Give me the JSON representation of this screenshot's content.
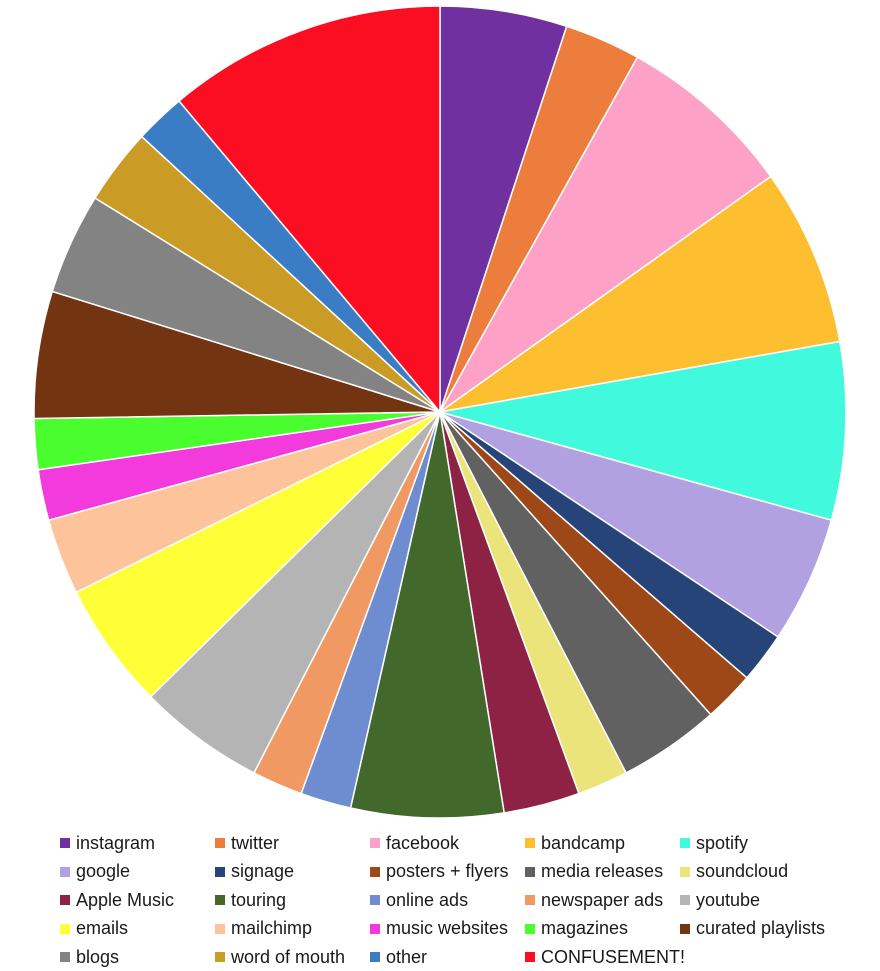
{
  "chart_data": {
    "type": "pie",
    "start": "12 o'clock, clockwise",
    "slices": [
      {
        "label": "instagram",
        "value": 5,
        "color": "#7030A0"
      },
      {
        "label": "twitter",
        "value": 3,
        "color": "#ED7D3C"
      },
      {
        "label": "facebook",
        "value": 7,
        "color": "#FDA2C6"
      },
      {
        "label": "bandcamp",
        "value": 7,
        "color": "#FDBE2F"
      },
      {
        "label": "spotify",
        "value": 7,
        "color": "#41F9DD"
      },
      {
        "label": "google",
        "value": 5,
        "color": "#B2A1E0"
      },
      {
        "label": "signage",
        "value": 2,
        "color": "#264478"
      },
      {
        "label": "posters + flyers",
        "value": 2,
        "color": "#9E4818"
      },
      {
        "label": "media releases",
        "value": 4,
        "color": "#616161"
      },
      {
        "label": "soundcloud",
        "value": 2,
        "color": "#EAE47B"
      },
      {
        "label": "Apple Music",
        "value": 3,
        "color": "#8E2244"
      },
      {
        "label": "touring",
        "value": 6,
        "color": "#43682B"
      },
      {
        "label": "online ads",
        "value": 2,
        "color": "#6E8DD0"
      },
      {
        "label": "newspaper ads",
        "value": 2,
        "color": "#F09962"
      },
      {
        "label": "youtube",
        "value": 5,
        "color": "#B4B4B4"
      },
      {
        "label": "emails",
        "value": 5,
        "color": "#FFFF38"
      },
      {
        "label": "mailchimp",
        "value": 3,
        "color": "#FDC49C"
      },
      {
        "label": "music websites",
        "value": 2,
        "color": "#F33ADD"
      },
      {
        "label": "magazines",
        "value": 2,
        "color": "#4AFD2E"
      },
      {
        "label": "curated playlists",
        "value": 5,
        "color": "#733411"
      },
      {
        "label": "blogs",
        "value": 4,
        "color": "#838383"
      },
      {
        "label": "word of mouth",
        "value": 3,
        "color": "#CB9C25"
      },
      {
        "label": "other",
        "value": 2,
        "color": "#3A7DC4"
      },
      {
        "label": "CONFUSEMENT!",
        "value": 11,
        "color": "#FC0E22"
      }
    ],
    "legend_position": "bottom",
    "legend_columns": 5
  }
}
